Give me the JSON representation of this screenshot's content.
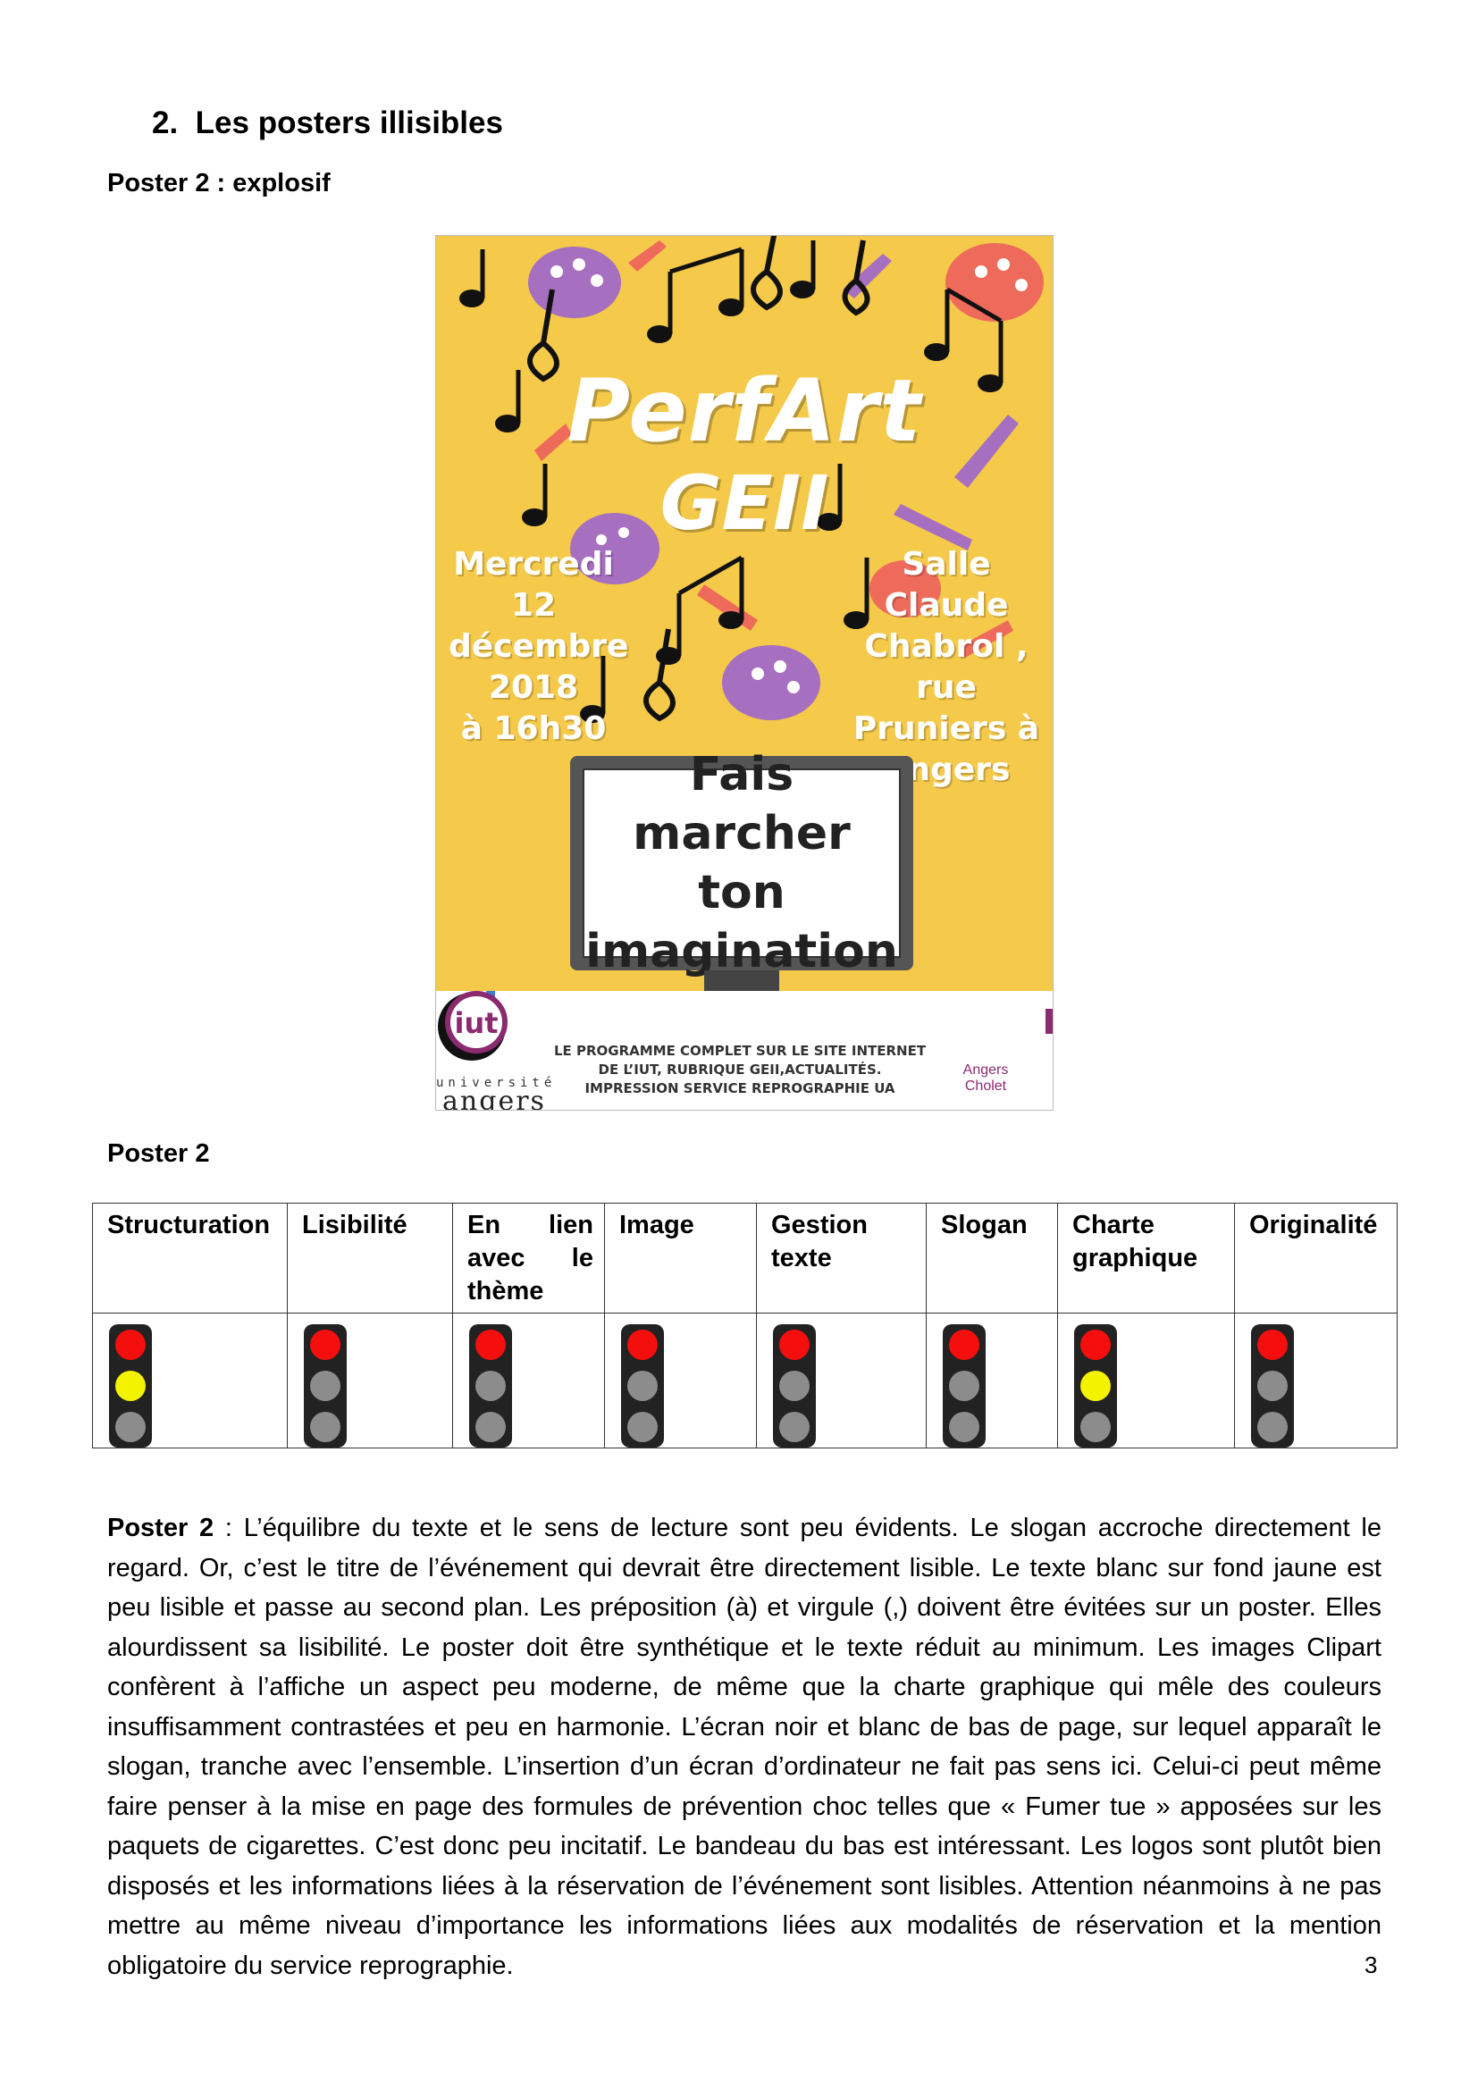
{
  "section": {
    "number": "2.",
    "title": "Les posters illisibles"
  },
  "poster_heading": "Poster 2 : explosif",
  "poster": {
    "title_line1": "PerfArt",
    "title_line2": "GEII",
    "date": "Mercredi\n12\ndécembre\n2018\nà 16h30",
    "venue": "Salle Claude\nChabrol ,\nrue\nPruniers à\nAngers",
    "slogan": "Fais marcher\nton\nimagination",
    "footer": "LE PROGRAMME COMPLET SUR LE SITE INTERNET\nDE L’IUT, RUBRIQUE GEII,ACTUALITÉS.\nIMPRESSION SERVICE REPROGRAPHIE UA",
    "ua_logo_line1": "université",
    "ua_logo_line2": "angers",
    "iut_logo": "iut",
    "iut_city": "Angers\nCholet"
  },
  "table_caption": "Poster 2",
  "table": {
    "headers": [
      "Structuration",
      "Lisibilité",
      "En lien avec le thème",
      "Image",
      "Gestion texte",
      "Slogan",
      "Charte graphique",
      "Originalité"
    ],
    "lights": [
      [
        "red",
        "yellow",
        "grey"
      ],
      [
        "red",
        "grey",
        "grey"
      ],
      [
        "red",
        "grey",
        "grey"
      ],
      [
        "red",
        "grey",
        "grey"
      ],
      [
        "red",
        "grey",
        "grey"
      ],
      [
        "red",
        "grey",
        "grey"
      ],
      [
        "red",
        "yellow",
        "grey"
      ],
      [
        "red",
        "grey",
        "grey"
      ]
    ]
  },
  "paragraph": {
    "lead": "Poster 2",
    "text": " : L’équilibre du texte et le sens de lecture sont peu évidents. Le slogan accroche directement le regard. Or, c’est le titre de l’événement qui devrait être directement lisible. Le texte blanc sur fond jaune est peu lisible et passe au second plan. Les préposition (à) et virgule (,) doivent être évitées sur un poster. Elles alourdissent sa lisibilité. Le poster doit être synthétique et le texte réduit au minimum. Les images Clipart confèrent à l’affiche un aspect peu moderne, de même que la charte graphique qui mêle des couleurs insuffisamment contrastées et peu en harmonie. L’écran noir et blanc de bas de page, sur lequel apparaît le slogan, tranche avec l’ensemble. L’insertion d’un écran d’ordinateur ne fait pas sens ici. Celui-ci peut même faire penser à la mise en page des formules de prévention choc telles que « Fumer tue » apposées sur les paquets de cigarettes. C’est donc peu incitatif. Le bandeau du bas est intéressant. Les logos sont plutôt bien disposés et les informations liées à la réservation de l’événement sont lisibles. Attention néanmoins à ne pas mettre au même niveau d’importance les informations liées aux modalités de réservation et la mention obligatoire du service reprographie."
  },
  "page_number": "3",
  "colors": {
    "poster_bg": "#f5c94a",
    "purple": "#a66fc0",
    "coral": "#ee6a5a",
    "light_red": "#f50e0e",
    "light_yellow": "#f3f300",
    "light_off": "#8c8c8c"
  }
}
